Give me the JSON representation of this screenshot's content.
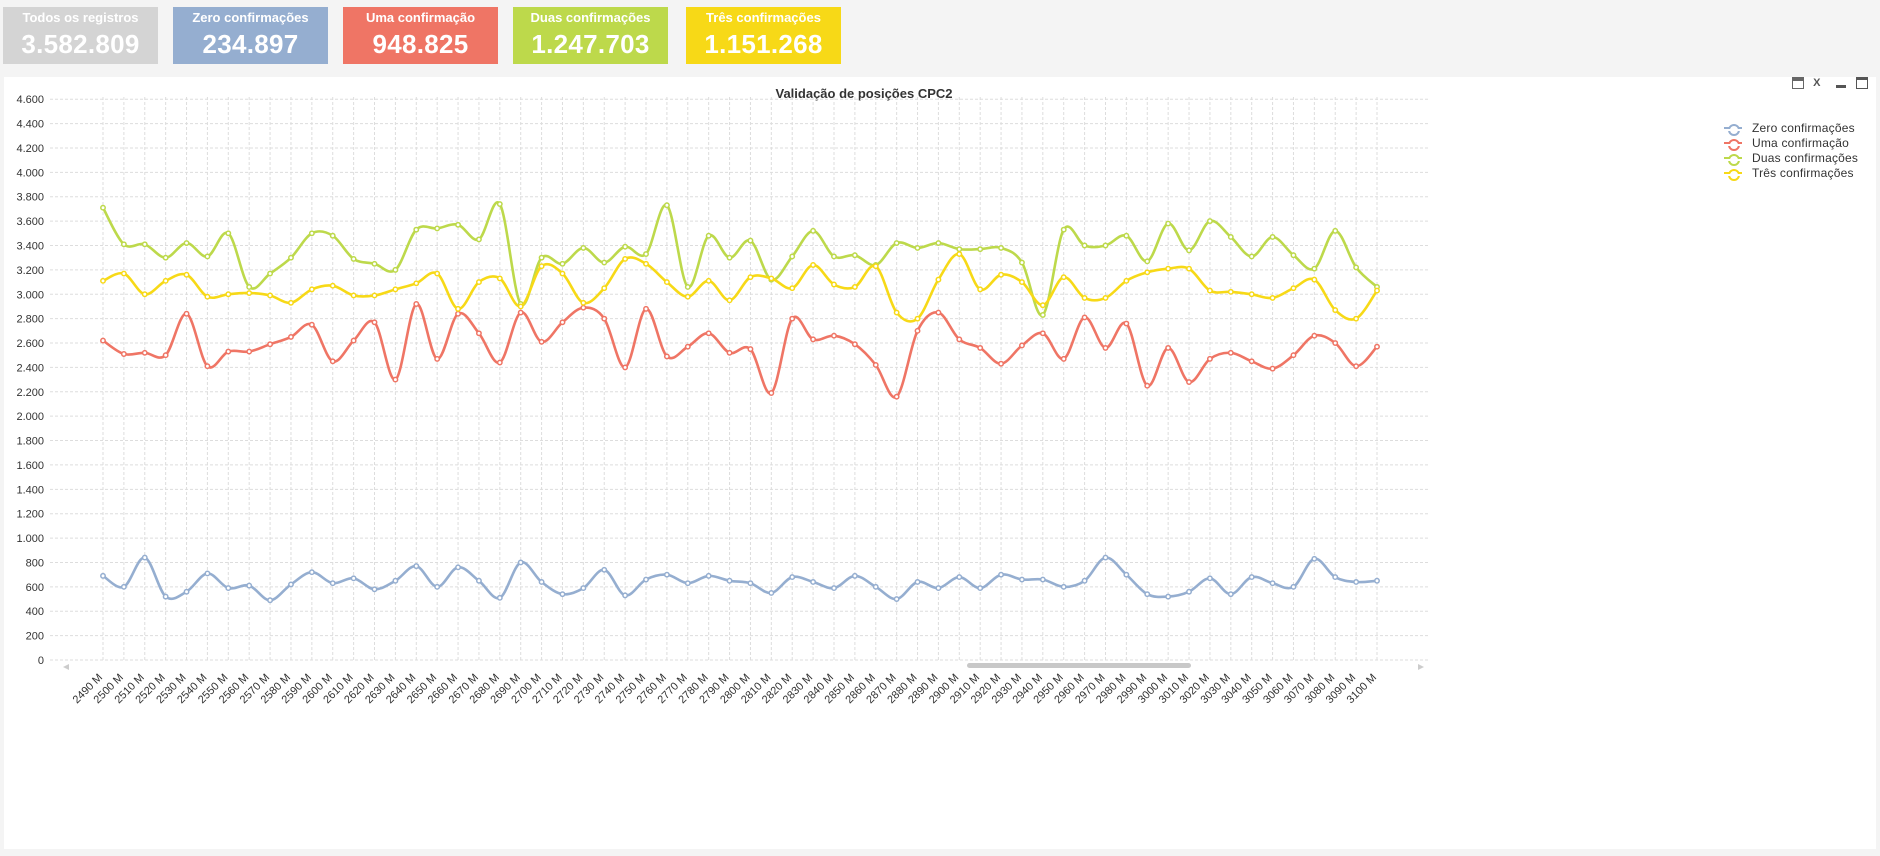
{
  "kpis": [
    {
      "label": "Todos os registros",
      "value": "3.582.809",
      "color": "#d4d4d4"
    },
    {
      "label": "Zero confirmações",
      "value": "234.897",
      "color": "#95aed0"
    },
    {
      "label": "Uma confirmação",
      "value": "948.825",
      "color": "#ef7565"
    },
    {
      "label": "Duas confirmações",
      "value": "1.247.703",
      "color": "#bdd94b"
    },
    {
      "label": "Três confirmações",
      "value": "1.151.268",
      "color": "#f7d917"
    }
  ],
  "chart_data": {
    "type": "line",
    "title": "Validação de posições CPC2",
    "xlabel": "",
    "ylabel": "",
    "ylim": [
      0,
      4700
    ],
    "yticks": [
      0,
      200,
      400,
      600,
      800,
      1000,
      1200,
      1400,
      1600,
      1800,
      2000,
      2200,
      2400,
      2600,
      2800,
      3000,
      3200,
      3400,
      3600,
      3800,
      4000,
      4200,
      4400,
      4600
    ],
    "ytick_labels": [
      "0",
      "200",
      "400",
      "600",
      "800",
      "1.000",
      "1.200",
      "1.400",
      "1.600",
      "1.800",
      "2.000",
      "2.200",
      "2.400",
      "2.600",
      "2.800",
      "3.000",
      "3.200",
      "3.400",
      "3.600",
      "3.800",
      "4.000",
      "4.200",
      "4.400",
      "4.600"
    ],
    "categories": [
      "2490 M",
      "2500 M",
      "2510 M",
      "2520 M",
      "2530 M",
      "2540 M",
      "2550 M",
      "2560 M",
      "2570 M",
      "2580 M",
      "2590 M",
      "2600 M",
      "2610 M",
      "2620 M",
      "2630 M",
      "2640 M",
      "2650 M",
      "2660 M",
      "2670 M",
      "2680 M",
      "2690 M",
      "2700 M",
      "2710 M",
      "2720 M",
      "2730 M",
      "2740 M",
      "2750 M",
      "2760 M",
      "2770 M",
      "2780 M",
      "2790 M",
      "2800 M",
      "2810 M",
      "2820 M",
      "2830 M",
      "2840 M",
      "2850 M",
      "2860 M",
      "2870 M",
      "2880 M",
      "2890 M",
      "2900 M",
      "2910 M",
      "2920 M",
      "2930 M",
      "2940 M",
      "2950 M",
      "2960 M",
      "2970 M",
      "2980 M",
      "2990 M",
      "3000 M",
      "3010 M",
      "3020 M",
      "3030 M",
      "3040 M",
      "3050 M",
      "3060 M",
      "3070 M",
      "3080 M",
      "3090 M",
      "3100 M"
    ],
    "grid": true,
    "legend_position": "top-right",
    "series": [
      {
        "name": "Zero confirmações",
        "color": "#95aed0",
        "values": [
          690,
          600,
          840,
          520,
          560,
          710,
          590,
          610,
          490,
          620,
          720,
          630,
          670,
          580,
          650,
          770,
          600,
          760,
          650,
          510,
          800,
          640,
          540,
          590,
          740,
          530,
          660,
          700,
          630,
          690,
          650,
          630,
          550,
          680,
          640,
          590,
          690,
          600,
          500,
          640,
          590,
          680,
          590,
          700,
          660,
          660,
          600,
          650,
          840,
          700,
          540,
          520,
          560,
          670,
          540,
          680,
          630,
          600,
          830,
          680,
          640,
          650
        ]
      },
      {
        "name": "Uma confirmação",
        "color": "#ef7565",
        "values": [
          2620,
          2510,
          2520,
          2500,
          2840,
          2410,
          2530,
          2530,
          2590,
          2650,
          2750,
          2450,
          2620,
          2770,
          2300,
          2920,
          2470,
          2840,
          2680,
          2440,
          2850,
          2610,
          2770,
          2890,
          2800,
          2400,
          2880,
          2490,
          2570,
          2680,
          2520,
          2550,
          2190,
          2800,
          2630,
          2660,
          2590,
          2420,
          2160,
          2700,
          2850,
          2630,
          2560,
          2430,
          2580,
          2680,
          2470,
          2810,
          2560,
          2760,
          2250,
          2560,
          2280,
          2470,
          2520,
          2450,
          2390,
          2500,
          2660,
          2600,
          2410,
          2570
        ]
      },
      {
        "name": "Duas confirmações",
        "color": "#bdd94b",
        "values": [
          3710,
          3410,
          3410,
          3300,
          3420,
          3310,
          3500,
          3060,
          3170,
          3300,
          3500,
          3480,
          3290,
          3250,
          3200,
          3530,
          3540,
          3570,
          3450,
          3740,
          2920,
          3300,
          3250,
          3380,
          3260,
          3390,
          3330,
          3730,
          3060,
          3480,
          3300,
          3440,
          3120,
          3310,
          3520,
          3310,
          3320,
          3240,
          3420,
          3380,
          3420,
          3370,
          3370,
          3380,
          3260,
          2830,
          3530,
          3400,
          3400,
          3480,
          3270,
          3580,
          3360,
          3600,
          3470,
          3310,
          3470,
          3320,
          3210,
          3520,
          3220,
          3060
        ]
      },
      {
        "name": "Três confirmações",
        "color": "#f7d917",
        "values": [
          3110,
          3170,
          3000,
          3110,
          3160,
          2980,
          3000,
          3010,
          2990,
          2930,
          3040,
          3070,
          2990,
          2990,
          3040,
          3090,
          3170,
          2880,
          3100,
          3130,
          2900,
          3230,
          3170,
          2930,
          3050,
          3290,
          3250,
          3100,
          2980,
          3110,
          2950,
          3140,
          3130,
          3050,
          3240,
          3080,
          3060,
          3230,
          2850,
          2800,
          3120,
          3330,
          3040,
          3160,
          3100,
          2910,
          3140,
          2970,
          2970,
          3110,
          3180,
          3210,
          3210,
          3030,
          3020,
          3000,
          2970,
          3050,
          3120,
          2870,
          2800,
          3030
        ]
      }
    ]
  }
}
